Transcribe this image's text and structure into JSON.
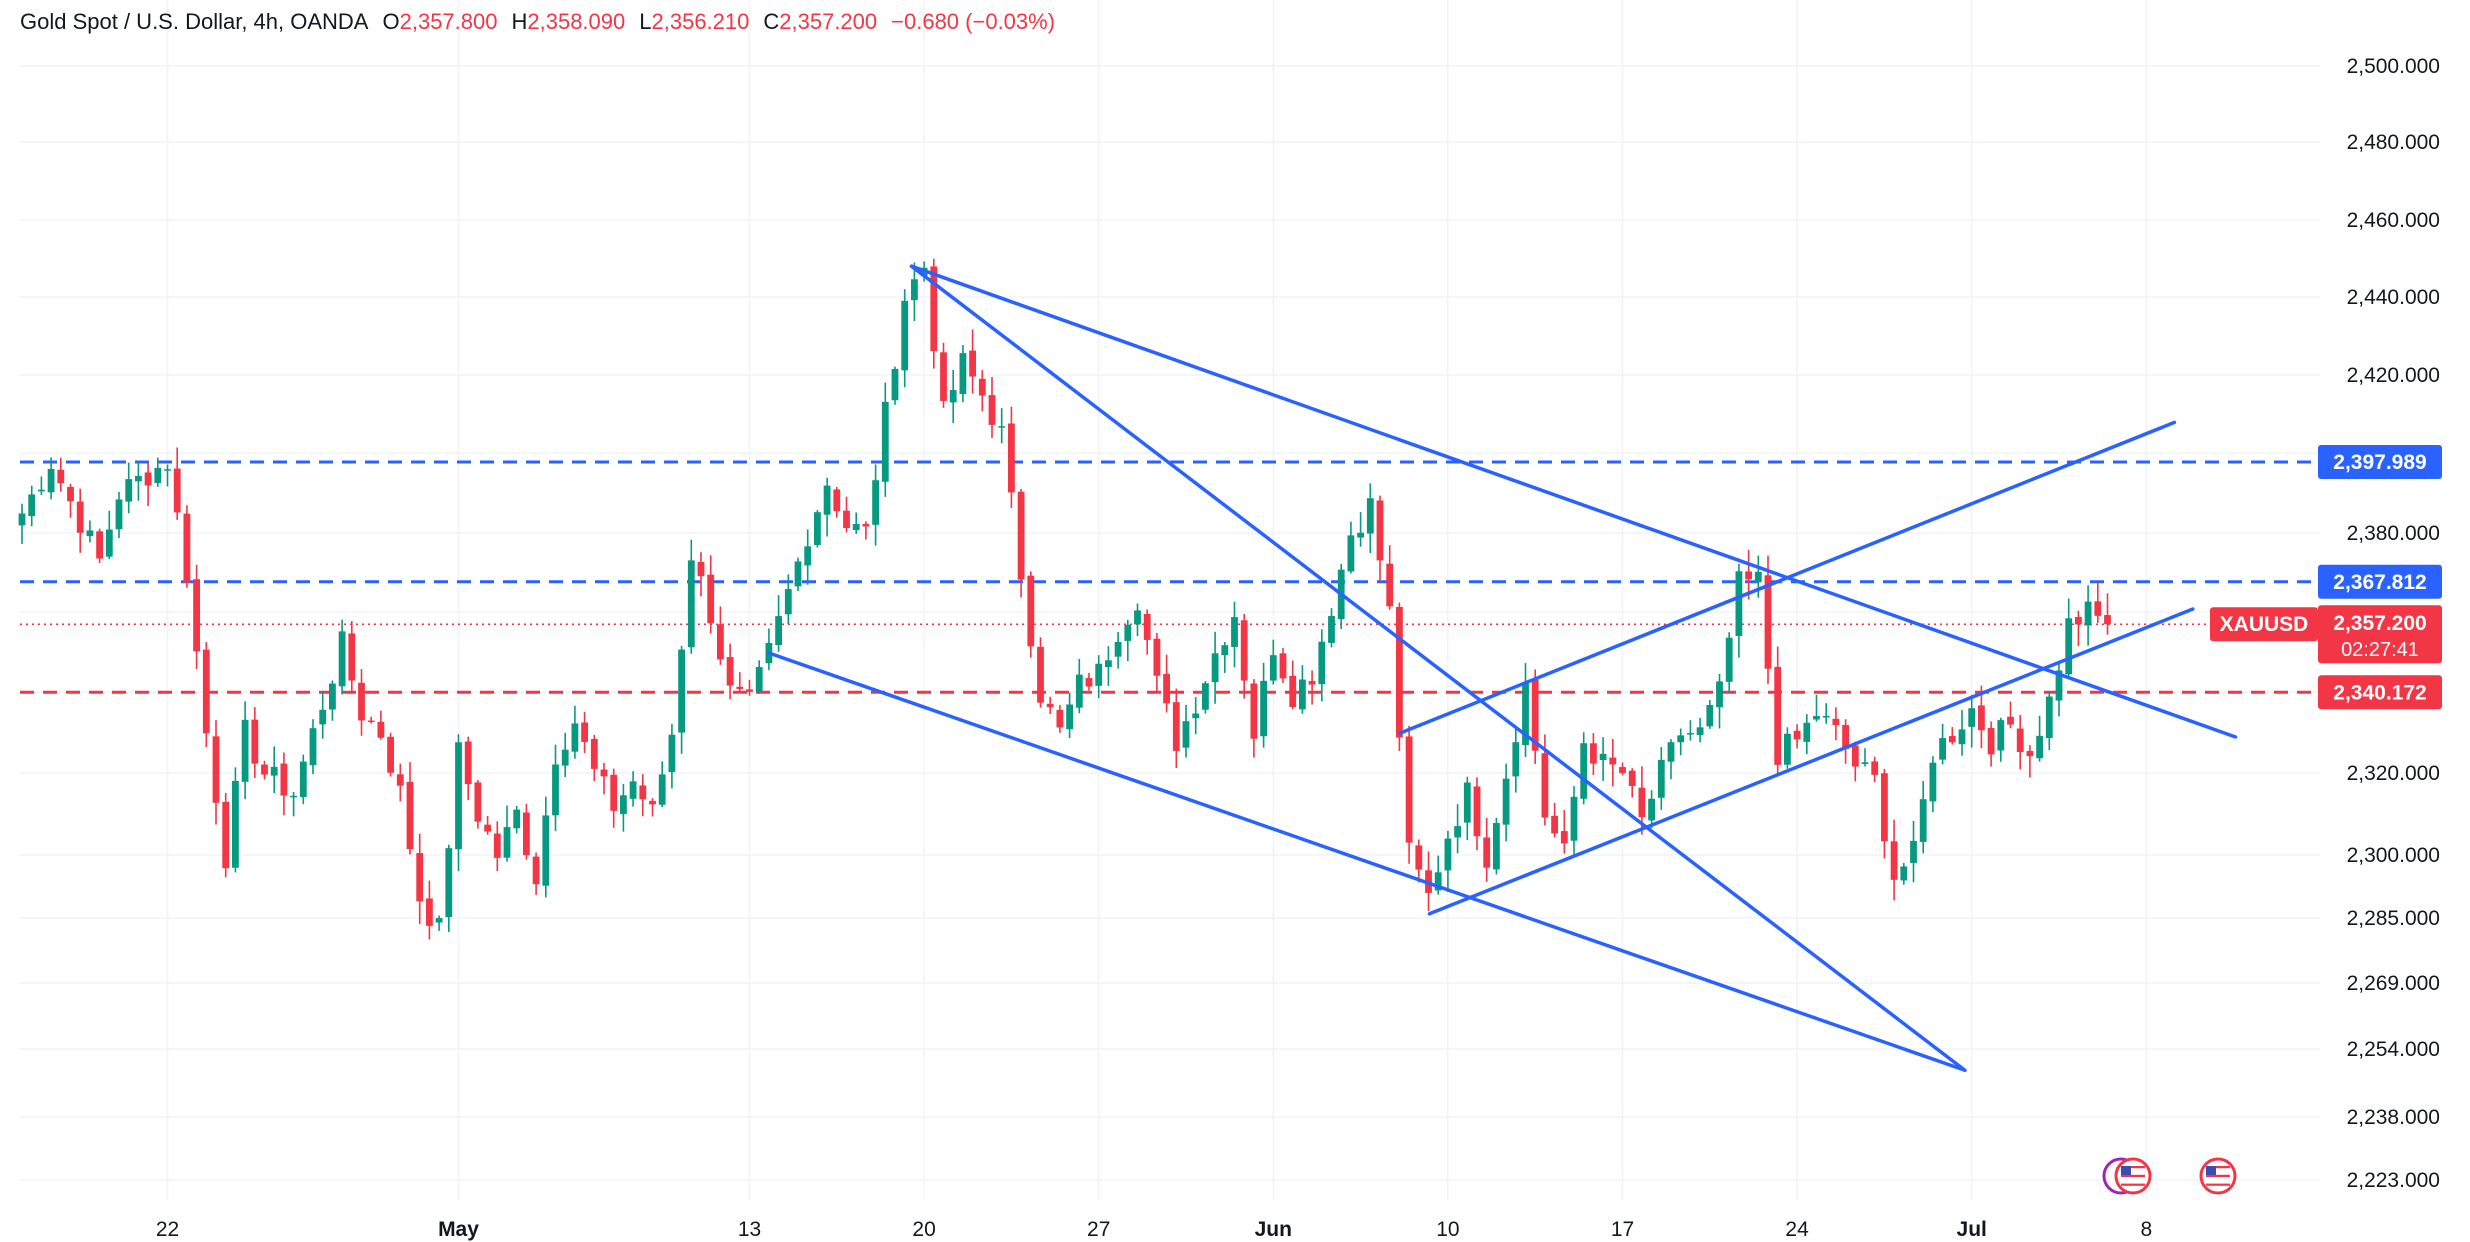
{
  "legend": {
    "symbol": "Gold Spot / U.S. Dollar, 4h, OANDA",
    "o_label": "O",
    "o_value": "2,357.800",
    "h_label": "H",
    "h_value": "2,358.090",
    "l_label": "L",
    "l_value": "2,356.210",
    "c_label": "C",
    "c_value": "2,357.200",
    "change": "−0.680 (−0.03%)"
  },
  "colors": {
    "up": "#089981",
    "down": "#f23645",
    "trendline": "#2962ff",
    "level_blue": "#2962ff",
    "level_red": "#f23645",
    "grid": "#f0f3fa",
    "text": "#131722"
  },
  "chart_data": {
    "type": "candlestick",
    "y_axis_labels": [
      "2,500.000",
      "2,480.000",
      "2,460.000",
      "2,440.000",
      "2,420.000",
      "2,380.000",
      "2,320.000",
      "2,300.000",
      "2,285.000",
      "2,269.000",
      "2,254.000",
      "2,238.000",
      "2,223.000"
    ],
    "y_axis_values": [
      2500,
      2480,
      2460,
      2440,
      2420,
      2380,
      2320,
      2300,
      2285,
      2269,
      2254,
      2238,
      2223
    ],
    "x_axis_labels": [
      {
        "label": "22",
        "index": 15,
        "bold": false
      },
      {
        "label": "May",
        "index": 45,
        "bold": true
      },
      {
        "label": "13",
        "index": 75,
        "bold": false
      },
      {
        "label": "20",
        "index": 93,
        "bold": false
      },
      {
        "label": "27",
        "index": 111,
        "bold": false
      },
      {
        "label": "Jun",
        "index": 129,
        "bold": true
      },
      {
        "label": "10",
        "index": 147,
        "bold": false
      },
      {
        "label": "17",
        "index": 165,
        "bold": false
      },
      {
        "label": "24",
        "index": 183,
        "bold": false
      },
      {
        "label": "Jul",
        "index": 201,
        "bold": true
      },
      {
        "label": "8",
        "index": 219,
        "bold": false
      }
    ],
    "price_levels": [
      {
        "price": 2397.989,
        "label": "2,397.989",
        "color": "#2962ff"
      },
      {
        "price": 2367.812,
        "label": "2,367.812",
        "color": "#2962ff"
      },
      {
        "price": 2340.172,
        "label": "2,340.172",
        "color": "#f23645"
      }
    ],
    "current_price": {
      "price": 2357.2,
      "label": "2,357.200",
      "symbol": "XAUUSD",
      "countdown": "02:27:41"
    },
    "trendlines": [
      {
        "from": [
          91.7,
          2448
        ],
        "to": [
          200.3,
          2249
        ]
      },
      {
        "from": [
          77,
          2350
        ],
        "to": [
          200.3,
          2249
        ]
      },
      {
        "from": [
          91.7,
          2448
        ],
        "to": [
          228.2,
          2329
        ]
      },
      {
        "from": [
          145.1,
          2286
        ],
        "to": [
          223.8,
          2361
        ]
      },
      {
        "from": [
          142.1,
          2330
        ],
        "to": [
          221.9,
          2408
        ]
      }
    ],
    "anchors": [
      [
        0,
        2385
      ],
      [
        3,
        2398
      ],
      [
        6,
        2383
      ],
      [
        8,
        2373
      ],
      [
        10,
        2390
      ],
      [
        13,
        2395
      ],
      [
        15,
        2398
      ],
      [
        17,
        2370
      ],
      [
        19,
        2330
      ],
      [
        21,
        2300
      ],
      [
        23,
        2330
      ],
      [
        25,
        2320
      ],
      [
        28,
        2315
      ],
      [
        30,
        2330
      ],
      [
        33,
        2352
      ],
      [
        35,
        2335
      ],
      [
        37,
        2330
      ],
      [
        39,
        2315
      ],
      [
        41,
        2290
      ],
      [
        43,
        2282
      ],
      [
        45,
        2325
      ],
      [
        47,
        2310
      ],
      [
        49,
        2300
      ],
      [
        51,
        2310
      ],
      [
        53,
        2295
      ],
      [
        55,
        2325
      ],
      [
        57,
        2333
      ],
      [
        59,
        2320
      ],
      [
        61,
        2312
      ],
      [
        63,
        2318
      ],
      [
        65,
        2310
      ],
      [
        67,
        2330
      ],
      [
        69,
        2375
      ],
      [
        71,
        2360
      ],
      [
        73,
        2340
      ],
      [
        75,
        2337
      ],
      [
        77,
        2350
      ],
      [
        79,
        2365
      ],
      [
        81,
        2380
      ],
      [
        83,
        2393
      ],
      [
        85,
        2382
      ],
      [
        87,
        2380
      ],
      [
        89,
        2410
      ],
      [
        91,
        2440
      ],
      [
        93,
        2448
      ],
      [
        95,
        2410
      ],
      [
        97,
        2423
      ],
      [
        99,
        2415
      ],
      [
        101,
        2405
      ],
      [
        103,
        2370
      ],
      [
        105,
        2340
      ],
      [
        107,
        2330
      ],
      [
        109,
        2342
      ],
      [
        111,
        2345
      ],
      [
        113,
        2356
      ],
      [
        115,
        2364
      ],
      [
        117,
        2342
      ],
      [
        119,
        2328
      ],
      [
        121,
        2338
      ],
      [
        123,
        2350
      ],
      [
        125,
        2360
      ],
      [
        127,
        2330
      ],
      [
        129,
        2352
      ],
      [
        131,
        2340
      ],
      [
        133,
        2345
      ],
      [
        135,
        2362
      ],
      [
        137,
        2380
      ],
      [
        139,
        2387
      ],
      [
        141,
        2360
      ],
      [
        143,
        2300
      ],
      [
        145,
        2290
      ],
      [
        147,
        2305
      ],
      [
        149,
        2315
      ],
      [
        151,
        2300
      ],
      [
        153,
        2320
      ],
      [
        155,
        2342
      ],
      [
        157,
        2310
      ],
      [
        159,
        2300
      ],
      [
        161,
        2328
      ],
      [
        163,
        2322
      ],
      [
        165,
        2320
      ],
      [
        167,
        2308
      ],
      [
        169,
        2320
      ],
      [
        171,
        2330
      ],
      [
        173,
        2330
      ],
      [
        175,
        2340
      ],
      [
        177,
        2367
      ],
      [
        179,
        2368
      ],
      [
        181,
        2325
      ],
      [
        183,
        2328
      ],
      [
        185,
        2335
      ],
      [
        187,
        2330
      ],
      [
        189,
        2322
      ],
      [
        191,
        2318
      ],
      [
        193,
        2295
      ],
      [
        195,
        2300
      ],
      [
        197,
        2325
      ],
      [
        199,
        2330
      ],
      [
        201,
        2336
      ],
      [
        203,
        2328
      ],
      [
        205,
        2332
      ],
      [
        207,
        2325
      ],
      [
        209,
        2338
      ],
      [
        211,
        2357
      ],
      [
        213,
        2360
      ],
      [
        215,
        2357.2
      ]
    ]
  },
  "sidebar_badges": [
    {
      "name": "event-flag-1"
    },
    {
      "name": "event-flag-2"
    }
  ]
}
